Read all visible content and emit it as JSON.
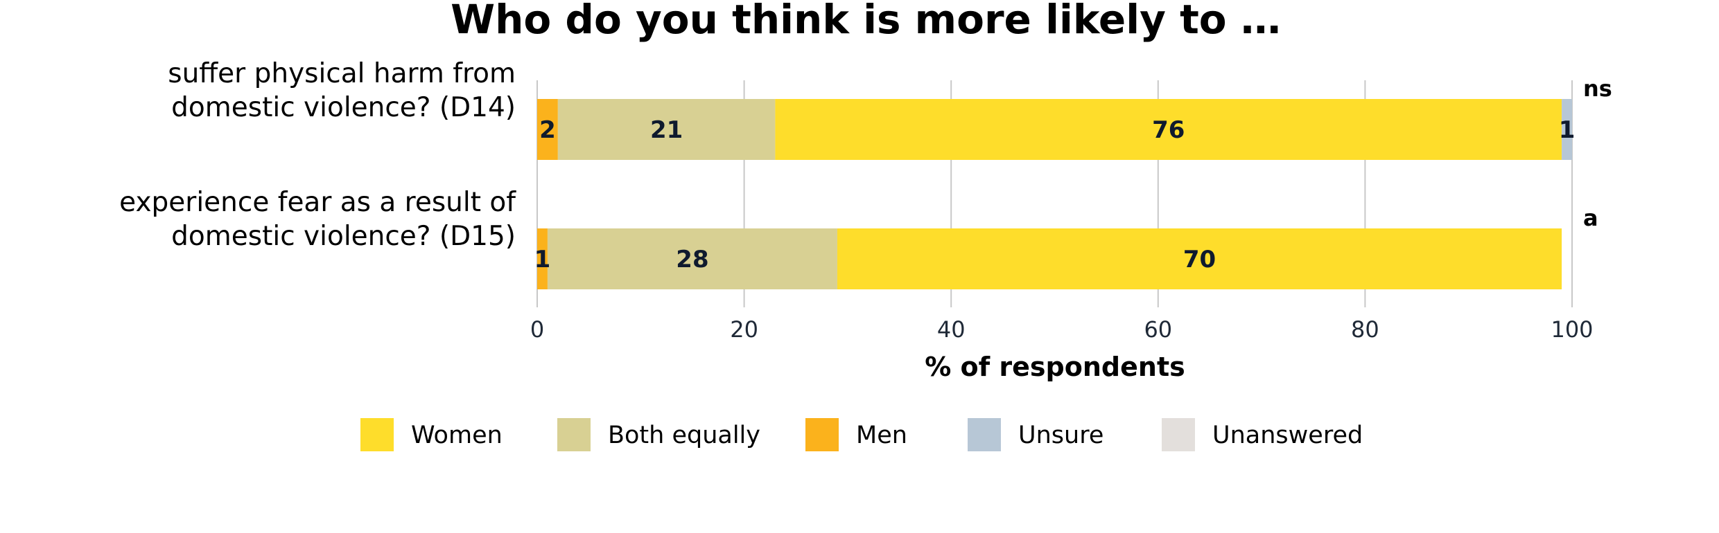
{
  "chart_data": {
    "type": "bar",
    "orientation": "horizontal",
    "stacked": true,
    "title": "Who do you think is more likely to …",
    "xlabel": "% of respondents",
    "ylabel": "",
    "xlim": [
      0,
      100
    ],
    "xticks": [
      0,
      20,
      40,
      60,
      80,
      100
    ],
    "grid": true,
    "legend_position": "bottom",
    "categories": [
      [
        "suffer physical harm from",
        "domestic violence? (D14)"
      ],
      [
        "experience fear as a result of",
        "domestic violence? (D15)"
      ]
    ],
    "significance": [
      "ns",
      "a"
    ],
    "stack_order": [
      "Men",
      "Both equally",
      "Women",
      "Unsure",
      "Unanswered"
    ],
    "series": [
      {
        "name": "Women",
        "color": "#fedd2b",
        "values": [
          76,
          70
        ],
        "labels": [
          "76",
          "70"
        ]
      },
      {
        "name": "Both equally",
        "color": "#d8d093",
        "values": [
          21,
          28
        ],
        "labels": [
          "21",
          "28"
        ]
      },
      {
        "name": "Men",
        "color": "#fbb21c",
        "values": [
          2,
          1
        ],
        "labels": [
          "2",
          "1"
        ]
      },
      {
        "name": "Unsure",
        "color": "#b7c7d6",
        "values": [
          1,
          0
        ],
        "labels": [
          "1",
          ""
        ]
      },
      {
        "name": "Unanswered",
        "color": "#e3dfdc",
        "values": [
          0,
          0
        ],
        "labels": [
          "",
          ""
        ]
      }
    ]
  }
}
